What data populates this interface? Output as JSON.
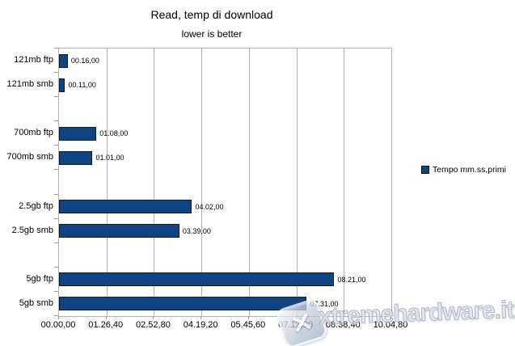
{
  "chart_data": {
    "type": "bar",
    "orientation": "horizontal",
    "title": "Read, temp di download",
    "subtitle": "lower is better",
    "categories": [
      "121mb ftp",
      "121mb smb",
      "700mb ftp",
      "700mb smb",
      "2.5gb ftp",
      "2.5gb smb",
      "5gb ftp",
      "5gb smb"
    ],
    "values_seconds": [
      16,
      11,
      68,
      61,
      242,
      219,
      501,
      451
    ],
    "value_labels": [
      "00.16,00",
      "00.11,00",
      "01.08,00",
      "01.01,00",
      "04.02,00",
      "03.39,00",
      "08.21,00",
      "07.31,00"
    ],
    "x_tick_labels": [
      "00.00,00",
      "01.26,40",
      "02.52,80",
      "04.19,20",
      "05.45,60",
      "07.12,00",
      "08.38,40",
      "10.04,80"
    ],
    "x_tick_seconds": [
      0,
      86.4,
      172.8,
      259.2,
      345.6,
      432,
      518.4,
      604.8
    ],
    "xlim_seconds": [
      0,
      604.8
    ],
    "xlabel": "",
    "ylabel": "",
    "grid": "vertical",
    "bar_color": "#0e4483",
    "bar_border_color": "#1a1a1a",
    "grid_color": "#b3b3b3",
    "legend_position": "right"
  },
  "legend": {
    "label": "Tempo mm.ss,primi",
    "color": "#0e4483"
  },
  "watermark": {
    "text": "xtremehardware.it",
    "logo_glyph": "✕"
  }
}
